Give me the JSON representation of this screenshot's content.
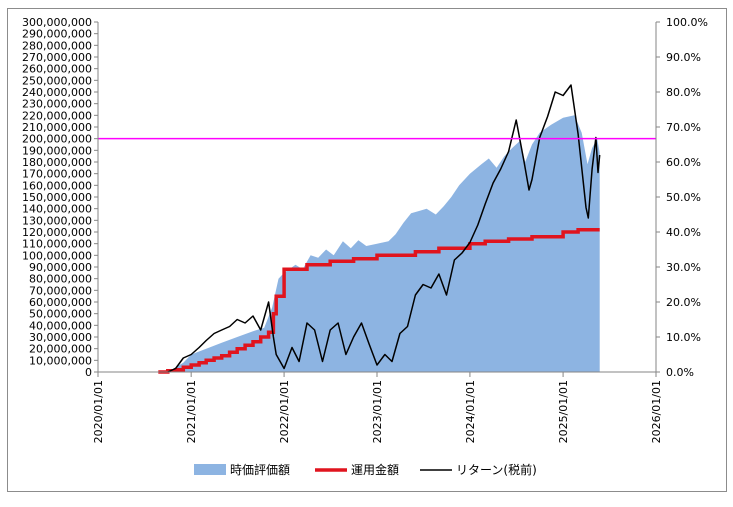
{
  "chart_data": {
    "type": "area",
    "title": "",
    "xlabel": "",
    "ylabel": "",
    "x_ticks": [
      "2020/01/01",
      "2021/01/01",
      "2022/01/01",
      "2023/01/01",
      "2024/01/01",
      "2025/01/01",
      "2026/01/01"
    ],
    "y_left_ticks": [
      "0",
      "10,000,000",
      "20,000,000",
      "30,000,000",
      "40,000,000",
      "50,000,000",
      "60,000,000",
      "70,000,000",
      "80,000,000",
      "90,000,000",
      "100,000,000",
      "110,000,000",
      "120,000,000",
      "130,000,000",
      "140,000,000",
      "150,000,000",
      "160,000,000",
      "170,000,000",
      "180,000,000",
      "190,000,000",
      "200,000,000",
      "210,000,000",
      "220,000,000",
      "230,000,000",
      "240,000,000",
      "250,000,000",
      "260,000,000",
      "270,000,000",
      "280,000,000",
      "290,000,000",
      "300,000,000"
    ],
    "y_right_ticks": [
      "0.0%",
      "10.0%",
      "20.0%",
      "30.0%",
      "40.0%",
      "50.0%",
      "60.0%",
      "70.0%",
      "80.0%",
      "90.0%",
      "100.0%"
    ],
    "ylim_left": [
      0,
      300000000
    ],
    "ylim_right": [
      0,
      1.0
    ],
    "xlim": [
      "2020-01-01",
      "2026-01-01"
    ],
    "reference_line": {
      "value": 200000000,
      "axis": "left",
      "color": "#ff00ff"
    },
    "legend_position": "bottom",
    "series": [
      {
        "name": "時価評価額",
        "type": "area",
        "axis": "left",
        "color": "#8db4e2",
        "points": [
          [
            "2020-09-01",
            0
          ],
          [
            "2020-10-15",
            2000000
          ],
          [
            "2020-12-01",
            8000000
          ],
          [
            "2021-01-01",
            15000000
          ],
          [
            "2021-03-01",
            20000000
          ],
          [
            "2021-05-01",
            25000000
          ],
          [
            "2021-07-01",
            30000000
          ],
          [
            "2021-09-01",
            35000000
          ],
          [
            "2021-10-15",
            38000000
          ],
          [
            "2021-11-15",
            55000000
          ],
          [
            "2021-12-10",
            80000000
          ],
          [
            "2022-01-01",
            85000000
          ],
          [
            "2022-02-15",
            92000000
          ],
          [
            "2022-03-15",
            88000000
          ],
          [
            "2022-04-15",
            100000000
          ],
          [
            "2022-05-15",
            98000000
          ],
          [
            "2022-06-15",
            105000000
          ],
          [
            "2022-07-15",
            100000000
          ],
          [
            "2022-08-20",
            112000000
          ],
          [
            "2022-09-20",
            106000000
          ],
          [
            "2022-10-20",
            113000000
          ],
          [
            "2022-11-20",
            108000000
          ],
          [
            "2023-01-01",
            110000000
          ],
          [
            "2023-02-15",
            112000000
          ],
          [
            "2023-03-15",
            118000000
          ],
          [
            "2023-04-15",
            128000000
          ],
          [
            "2023-05-15",
            136000000
          ],
          [
            "2023-06-15",
            138000000
          ],
          [
            "2023-07-15",
            140000000
          ],
          [
            "2023-08-20",
            135000000
          ],
          [
            "2023-09-20",
            142000000
          ],
          [
            "2023-10-20",
            150000000
          ],
          [
            "2023-11-20",
            160000000
          ],
          [
            "2024-01-01",
            170000000
          ],
          [
            "2024-02-15",
            178000000
          ],
          [
            "2024-03-15",
            183000000
          ],
          [
            "2024-04-15",
            175000000
          ],
          [
            "2024-05-15",
            185000000
          ],
          [
            "2024-06-15",
            192000000
          ],
          [
            "2024-07-15",
            198000000
          ],
          [
            "2024-08-05",
            180000000
          ],
          [
            "2024-09-01",
            195000000
          ],
          [
            "2024-10-01",
            205000000
          ],
          [
            "2024-11-15",
            212000000
          ],
          [
            "2025-01-01",
            218000000
          ],
          [
            "2025-02-15",
            220000000
          ],
          [
            "2025-03-15",
            205000000
          ],
          [
            "2025-04-07",
            178000000
          ],
          [
            "2025-04-25",
            192000000
          ],
          [
            "2025-05-15",
            200000000
          ],
          [
            "2025-05-25",
            188000000
          ]
        ]
      },
      {
        "name": "運用金額",
        "type": "step",
        "axis": "left",
        "color": "#e0141e",
        "points": [
          [
            "2020-08-25",
            0
          ],
          [
            "2020-10-01",
            1000000
          ],
          [
            "2020-11-01",
            2000000
          ],
          [
            "2020-12-01",
            4000000
          ],
          [
            "2021-01-01",
            6000000
          ],
          [
            "2021-02-01",
            8000000
          ],
          [
            "2021-03-01",
            10000000
          ],
          [
            "2021-04-01",
            12000000
          ],
          [
            "2021-05-01",
            14000000
          ],
          [
            "2021-06-01",
            17000000
          ],
          [
            "2021-07-01",
            20000000
          ],
          [
            "2021-08-01",
            23000000
          ],
          [
            "2021-09-01",
            26000000
          ],
          [
            "2021-10-01",
            30000000
          ],
          [
            "2021-11-01",
            34000000
          ],
          [
            "2021-11-20",
            50000000
          ],
          [
            "2021-12-01",
            65000000
          ],
          [
            "2022-01-01",
            88000000
          ],
          [
            "2022-04-01",
            92000000
          ],
          [
            "2022-07-01",
            95000000
          ],
          [
            "2022-10-01",
            97000000
          ],
          [
            "2023-01-01",
            100000000
          ],
          [
            "2023-06-01",
            103000000
          ],
          [
            "2023-09-01",
            106000000
          ],
          [
            "2024-01-01",
            110000000
          ],
          [
            "2024-03-01",
            112000000
          ],
          [
            "2024-06-01",
            114000000
          ],
          [
            "2024-09-01",
            116000000
          ],
          [
            "2025-01-01",
            120000000
          ],
          [
            "2025-03-01",
            122000000
          ],
          [
            "2025-05-25",
            122000000
          ]
        ]
      },
      {
        "name": "リターン(税前)",
        "type": "line",
        "axis": "right",
        "color": "#000000",
        "points": [
          [
            "2020-10-01",
            0.0
          ],
          [
            "2020-11-01",
            0.01
          ],
          [
            "2020-12-01",
            0.04
          ],
          [
            "2021-01-01",
            0.05
          ],
          [
            "2021-02-01",
            0.07
          ],
          [
            "2021-03-01",
            0.09
          ],
          [
            "2021-04-01",
            0.11
          ],
          [
            "2021-05-01",
            0.12
          ],
          [
            "2021-06-01",
            0.13
          ],
          [
            "2021-07-01",
            0.15
          ],
          [
            "2021-08-01",
            0.14
          ],
          [
            "2021-09-01",
            0.16
          ],
          [
            "2021-10-01",
            0.12
          ],
          [
            "2021-11-01",
            0.2
          ],
          [
            "2021-11-20",
            0.1
          ],
          [
            "2021-12-01",
            0.05
          ],
          [
            "2022-01-01",
            0.01
          ],
          [
            "2022-02-01",
            0.07
          ],
          [
            "2022-03-01",
            0.03
          ],
          [
            "2022-04-01",
            0.14
          ],
          [
            "2022-05-01",
            0.12
          ],
          [
            "2022-06-01",
            0.03
          ],
          [
            "2022-07-01",
            0.12
          ],
          [
            "2022-08-01",
            0.14
          ],
          [
            "2022-09-01",
            0.05
          ],
          [
            "2022-10-01",
            0.1
          ],
          [
            "2022-11-01",
            0.14
          ],
          [
            "2022-12-01",
            0.08
          ],
          [
            "2023-01-01",
            0.02
          ],
          [
            "2023-02-01",
            0.05
          ],
          [
            "2023-03-01",
            0.03
          ],
          [
            "2023-04-01",
            0.11
          ],
          [
            "2023-05-01",
            0.13
          ],
          [
            "2023-06-01",
            0.22
          ],
          [
            "2023-07-01",
            0.25
          ],
          [
            "2023-08-01",
            0.24
          ],
          [
            "2023-09-01",
            0.28
          ],
          [
            "2023-10-01",
            0.22
          ],
          [
            "2023-11-01",
            0.32
          ],
          [
            "2023-12-01",
            0.34
          ],
          [
            "2024-01-01",
            0.37
          ],
          [
            "2024-02-01",
            0.42
          ],
          [
            "2024-03-01",
            0.48
          ],
          [
            "2024-04-01",
            0.54
          ],
          [
            "2024-05-01",
            0.58
          ],
          [
            "2024-06-01",
            0.63
          ],
          [
            "2024-07-01",
            0.72
          ],
          [
            "2024-08-01",
            0.6
          ],
          [
            "2024-08-20",
            0.52
          ],
          [
            "2024-09-01",
            0.55
          ],
          [
            "2024-10-01",
            0.67
          ],
          [
            "2024-11-01",
            0.73
          ],
          [
            "2024-12-01",
            0.8
          ],
          [
            "2025-01-01",
            0.79
          ],
          [
            "2025-02-01",
            0.82
          ],
          [
            "2025-03-01",
            0.68
          ],
          [
            "2025-04-01",
            0.47
          ],
          [
            "2025-04-10",
            0.44
          ],
          [
            "2025-04-25",
            0.58
          ],
          [
            "2025-05-10",
            0.67
          ],
          [
            "2025-05-18",
            0.57
          ],
          [
            "2025-05-25",
            0.62
          ]
        ]
      }
    ]
  }
}
